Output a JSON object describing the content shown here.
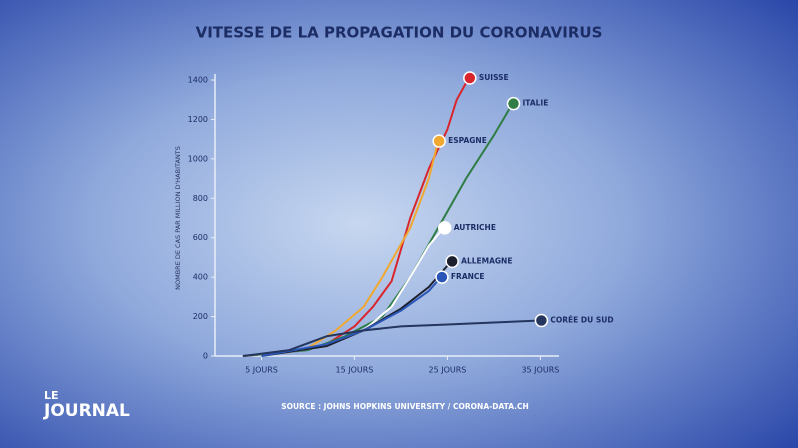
{
  "chart_data": {
    "type": "line",
    "title": "VITESSE DE LA PROPAGATION DU CORONAVIRUS",
    "y_label": "NOMBRE DE CAS PAR MILLION D'HABITANTS",
    "source": "SOURCE : JOHNS HOPKINS UNIVERSITY / CORONA-DATA.CH",
    "xlim": [
      0,
      37
    ],
    "xticks": [
      {
        "value": 5,
        "label": "5 JOURS"
      },
      {
        "value": 15,
        "label": "15 JOURS"
      },
      {
        "value": 25,
        "label": "25 JOURS"
      },
      {
        "value": 35,
        "label": "35 JOURS"
      }
    ],
    "ylim": [
      0,
      1400
    ],
    "yticks": [
      0,
      200,
      400,
      600,
      800,
      1000,
      1200,
      1400
    ],
    "series": [
      {
        "name": "SUISSE",
        "color": "#d8262c",
        "x": [
          3,
          8,
          12,
          15,
          17,
          19,
          21,
          23,
          25,
          26,
          27.3
        ],
        "values": [
          0,
          20,
          60,
          150,
          250,
          380,
          700,
          950,
          1150,
          1300,
          1410
        ]
      },
      {
        "name": "ITALIE",
        "color": "#2f7d45",
        "x": [
          3,
          10,
          14,
          18,
          21,
          24,
          27,
          30,
          32
        ],
        "values": [
          0,
          30,
          100,
          200,
          400,
          650,
          900,
          1120,
          1280
        ]
      },
      {
        "name": "ESPAGNE",
        "color": "#f0a830",
        "x": [
          5,
          10,
          13,
          16,
          18,
          21,
          23,
          24
        ],
        "values": [
          0,
          40,
          130,
          250,
          400,
          650,
          900,
          1090
        ]
      },
      {
        "name": "AUTRICHE",
        "color": "#ffffff",
        "x": [
          5,
          12,
          16,
          19,
          21,
          23,
          24.6
        ],
        "values": [
          0,
          50,
          130,
          250,
          400,
          560,
          650
        ]
      },
      {
        "name": "ALLEMAGNE",
        "color": "#1b1f2e",
        "x": [
          5,
          12,
          16,
          20,
          23,
          25.4
        ],
        "values": [
          0,
          50,
          130,
          240,
          350,
          480
        ]
      },
      {
        "name": "FRANCE",
        "color": "#2a56b8",
        "x": [
          5,
          12,
          16,
          20,
          23,
          24.3
        ],
        "values": [
          0,
          60,
          130,
          230,
          330,
          400
        ]
      },
      {
        "name": "CORÉE DU SUD",
        "color": "#24355e",
        "x": [
          3,
          8,
          12,
          16,
          20,
          25,
          30,
          35
        ],
        "values": [
          0,
          30,
          100,
          130,
          150,
          160,
          170,
          180
        ]
      }
    ]
  },
  "logo": {
    "line1": "LE",
    "line2": "JOURNAL"
  }
}
